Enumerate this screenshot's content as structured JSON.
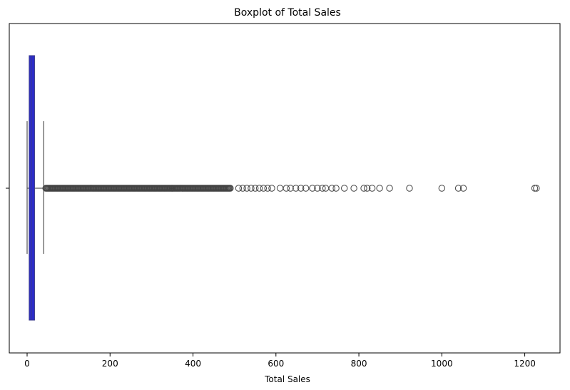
{
  "chart_data": {
    "type": "boxplot",
    "title": "Boxplot of Total Sales",
    "xlabel": "Total Sales",
    "ylabel": "",
    "xlim": [
      -43,
      1285
    ],
    "xticks": [
      0,
      200,
      400,
      600,
      800,
      1000,
      1200
    ],
    "xtick_labels": [
      "0",
      "200",
      "400",
      "600",
      "800",
      "1000",
      "1200"
    ],
    "box": {
      "min": 0,
      "q1": 5,
      "median": 10,
      "q3": 18,
      "max": 40,
      "color": "#2b2bc9"
    },
    "outliers": [
      45,
      55,
      65,
      75,
      85,
      95,
      105,
      115,
      125,
      135,
      145,
      155,
      165,
      175,
      185,
      195,
      205,
      215,
      225,
      235,
      245,
      255,
      265,
      275,
      285,
      295,
      305,
      315,
      325,
      335,
      350,
      360,
      370,
      380,
      390,
      400,
      410,
      420,
      430,
      440,
      450,
      460,
      470,
      480,
      490,
      510,
      520,
      530,
      540,
      550,
      560,
      570,
      580,
      590,
      610,
      625,
      635,
      648,
      660,
      672,
      688,
      700,
      712,
      720,
      735,
      745,
      765,
      788,
      812,
      820,
      832,
      850,
      874,
      922,
      1000,
      1040,
      1052,
      1224,
      1228
    ]
  }
}
